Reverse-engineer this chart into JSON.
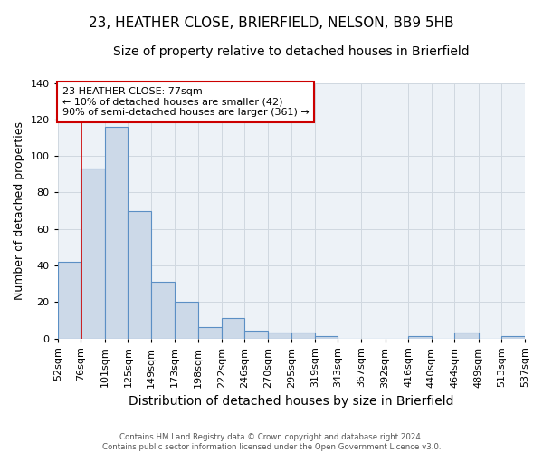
{
  "title1": "23, HEATHER CLOSE, BRIERFIELD, NELSON, BB9 5HB",
  "title2": "Size of property relative to detached houses in Brierfield",
  "xlabel": "Distribution of detached houses by size in Brierfield",
  "ylabel": "Number of detached properties",
  "bar_heights": [
    42,
    93,
    116,
    70,
    31,
    20,
    6,
    11,
    4,
    3,
    3,
    1,
    0,
    0,
    0,
    1,
    0,
    3,
    0,
    1
  ],
  "bin_edges": [
    52,
    76,
    101,
    125,
    149,
    173,
    198,
    222,
    246,
    270,
    295,
    319,
    343,
    367,
    392,
    416,
    440,
    464,
    489,
    513,
    537
  ],
  "x_labels": [
    "52sqm",
    "76sqm",
    "101sqm",
    "125sqm",
    "149sqm",
    "173sqm",
    "198sqm",
    "222sqm",
    "246sqm",
    "270sqm",
    "295sqm",
    "319sqm",
    "343sqm",
    "367sqm",
    "392sqm",
    "416sqm",
    "440sqm",
    "464sqm",
    "489sqm",
    "513sqm",
    "537sqm"
  ],
  "bar_facecolor": "#ccd9e8",
  "bar_edgecolor": "#5b8fc4",
  "grid_color": "#d0d8e0",
  "bg_color": "#edf2f7",
  "red_line_x": 77,
  "annotation_title": "23 HEATHER CLOSE: 77sqm",
  "annotation_line1": "← 10% of detached houses are smaller (42)",
  "annotation_line2": "90% of semi-detached houses are larger (361) →",
  "annotation_box_color": "#cc0000",
  "footnote1": "Contains HM Land Registry data © Crown copyright and database right 2024.",
  "footnote2": "Contains public sector information licensed under the Open Government Licence v3.0.",
  "ylim": [
    0,
    140
  ],
  "yticks": [
    0,
    20,
    40,
    60,
    80,
    100,
    120,
    140
  ],
  "title1_fontsize": 11,
  "title2_fontsize": 10,
  "xlabel_fontsize": 10,
  "ylabel_fontsize": 9,
  "tick_fontsize": 8,
  "annot_fontsize": 8
}
